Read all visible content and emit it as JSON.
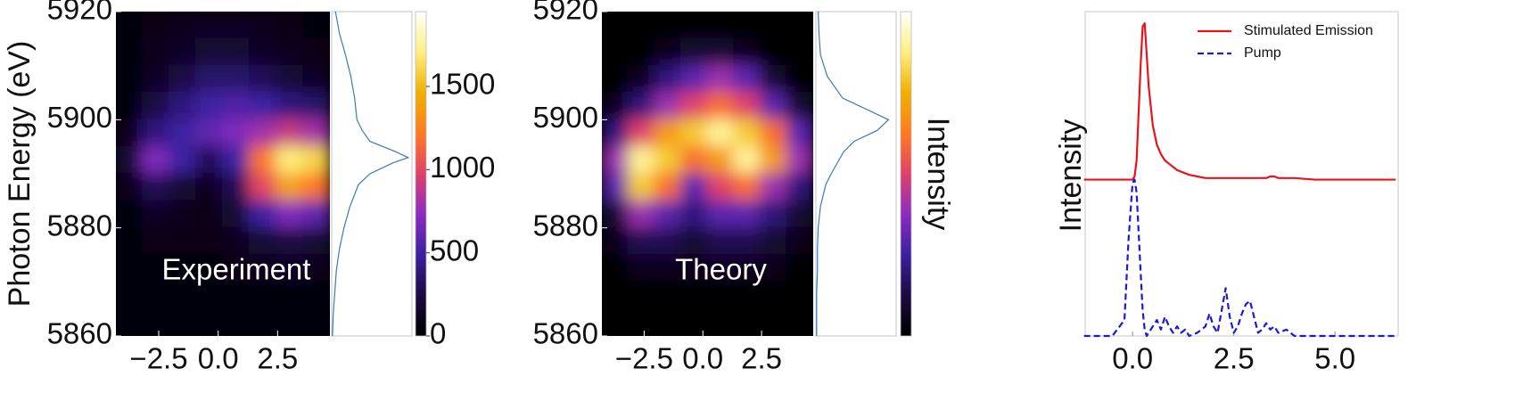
{
  "chart_data": [
    {
      "type": "heatmap",
      "ylabel": "Photon Energy (eV)",
      "annotation": "Experiment",
      "xlim": [
        -4.3,
        4.7
      ],
      "xticks": [
        {
          "value": -2.5,
          "label": "−2.5"
        },
        {
          "value": 0,
          "label": "0.0"
        },
        2.5
      ],
      "ylim": [
        5860,
        5920
      ],
      "yticks": [
        5860,
        5880,
        5900,
        5920
      ],
      "z": [
        [
          50,
          80,
          100,
          120,
          120,
          100,
          80,
          60
        ],
        [
          50,
          100,
          150,
          200,
          200,
          150,
          100,
          80
        ],
        [
          50,
          150,
          250,
          350,
          350,
          300,
          200,
          150
        ],
        [
          50,
          250,
          400,
          500,
          550,
          500,
          400,
          350
        ],
        [
          100,
          400,
          500,
          600,
          700,
          800,
          900,
          800
        ],
        [
          200,
          700,
          500,
          300,
          500,
          1200,
          1700,
          1600
        ],
        [
          100,
          300,
          200,
          100,
          300,
          1000,
          1400,
          1200
        ],
        [
          50,
          150,
          100,
          80,
          200,
          500,
          700,
          600
        ],
        [
          50,
          80,
          80,
          80,
          100,
          200,
          250,
          200
        ],
        [
          50,
          60,
          60,
          60,
          80,
          100,
          120,
          100
        ],
        [
          50,
          50,
          50,
          50,
          50,
          60,
          60,
          60
        ],
        [
          50,
          50,
          50,
          50,
          50,
          50,
          50,
          50
        ]
      ],
      "colormap": [
        "#000000",
        "#1a0a40",
        "#3a20a0",
        "#8a2cc0",
        "#e0406a",
        "#ff7a20",
        "#f0b000",
        "#fff080",
        "#ffffff"
      ],
      "clim": [
        0,
        1950
      ],
      "cticks": [
        0,
        500,
        1000,
        1500
      ],
      "spectrum": {
        "energy": [
          5860,
          5864,
          5868,
          5872,
          5876,
          5880,
          5884,
          5888,
          5890,
          5892,
          5893,
          5894,
          5896,
          5898,
          5900,
          5904,
          5908,
          5912,
          5916,
          5920
        ],
        "intensity": [
          0.01,
          0.02,
          0.04,
          0.06,
          0.1,
          0.16,
          0.24,
          0.35,
          0.5,
          0.8,
          1.0,
          0.85,
          0.5,
          0.4,
          0.33,
          0.3,
          0.25,
          0.18,
          0.1,
          0.05
        ],
        "xlim": [
          0,
          1.05
        ],
        "color": "#3a7ab8"
      }
    },
    {
      "type": "heatmap",
      "annotation": "Theory",
      "clabel": "Intensity",
      "xlim": [
        -4.3,
        4.7
      ],
      "xticks": [
        {
          "value": -2.5,
          "label": "−2.5"
        },
        {
          "value": 0,
          "label": "0.0"
        },
        2.5
      ],
      "ylim": [
        5860,
        5920
      ],
      "yticks": [
        5860,
        5880,
        5900,
        5920
      ],
      "z": [
        [
          0,
          0,
          0,
          0,
          0,
          0,
          0,
          0
        ],
        [
          0,
          0,
          0.05,
          0.1,
          0.1,
          0.05,
          0,
          0
        ],
        [
          0,
          0.05,
          0.2,
          0.3,
          0.4,
          0.3,
          0.1,
          0
        ],
        [
          0.05,
          0.2,
          0.4,
          0.5,
          0.6,
          0.5,
          0.3,
          0.1
        ],
        [
          0.2,
          0.5,
          0.7,
          0.8,
          0.9,
          0.8,
          0.6,
          0.3
        ],
        [
          0.4,
          0.9,
          0.8,
          0.6,
          0.7,
          0.9,
          0.7,
          0.4
        ],
        [
          0.3,
          0.8,
          0.6,
          0.3,
          0.5,
          0.6,
          0.4,
          0.2
        ],
        [
          0.1,
          0.4,
          0.3,
          0.2,
          0.3,
          0.3,
          0.2,
          0.1
        ],
        [
          0.05,
          0.15,
          0.15,
          0.1,
          0.15,
          0.15,
          0.1,
          0.05
        ],
        [
          0,
          0.05,
          0.05,
          0.05,
          0.05,
          0.05,
          0.05,
          0
        ],
        [
          0,
          0,
          0,
          0,
          0,
          0,
          0,
          0
        ],
        [
          0,
          0,
          0,
          0,
          0,
          0,
          0,
          0
        ]
      ],
      "colormap": [
        "#000000",
        "#1a0a40",
        "#3a20a0",
        "#8a2cc0",
        "#e0406a",
        "#ff7a20",
        "#f0b000",
        "#fff080",
        "#ffffff"
      ],
      "clim": [
        0,
        1
      ],
      "spectrum": {
        "energy": [
          5860,
          5864,
          5868,
          5872,
          5876,
          5880,
          5884,
          5888,
          5890,
          5892,
          5893,
          5894,
          5896,
          5898,
          5900,
          5904,
          5908,
          5912,
          5916,
          5920
        ],
        "intensity": [
          0.01,
          0.01,
          0.01,
          0.02,
          0.02,
          0.03,
          0.06,
          0.13,
          0.2,
          0.28,
          0.32,
          0.36,
          0.5,
          0.8,
          0.95,
          0.35,
          0.15,
          0.06,
          0.04,
          0.03
        ],
        "xlim": [
          0,
          1.05
        ],
        "color": "#3a7ab8"
      }
    },
    {
      "type": "line",
      "ylabel": "Intensity",
      "legend": "upper right",
      "x": [
        -1.2,
        -0.5,
        -0.2,
        -0.1,
        0,
        0.05,
        0.1,
        0.2,
        0.25,
        0.3,
        0.35,
        0.4,
        0.5,
        0.6,
        0.7,
        0.8,
        0.9,
        1.0,
        1.1,
        1.2,
        1.3,
        1.4,
        1.6,
        1.8,
        1.9,
        2.0,
        2.1,
        2.2,
        2.3,
        2.4,
        2.5,
        2.6,
        2.7,
        2.8,
        2.9,
        3.0,
        3.1,
        3.2,
        3.3,
        3.4,
        3.5,
        3.6,
        3.8,
        4.0,
        4.5,
        5.0,
        6.5
      ],
      "xlim": [
        -1.17,
        6.56
      ],
      "xticks": [
        {
          "value": 0,
          "label": "0.0"
        },
        2.5,
        {
          "value": 5,
          "label": "5.0"
        }
      ],
      "ylim": [
        0,
        1.0
      ],
      "series": [
        {
          "name": "Stimulated Emission",
          "color": "#e8141c",
          "dash": false,
          "values": [
            0.49,
            0.49,
            0.49,
            0.49,
            0.49,
            0.5,
            0.55,
            0.85,
            0.97,
            0.98,
            0.88,
            0.78,
            0.66,
            0.6,
            0.57,
            0.55,
            0.54,
            0.53,
            0.52,
            0.515,
            0.51,
            0.505,
            0.5,
            0.495,
            0.495,
            0.495,
            0.495,
            0.495,
            0.495,
            0.495,
            0.495,
            0.495,
            0.495,
            0.495,
            0.495,
            0.495,
            0.495,
            0.495,
            0.495,
            0.5,
            0.5,
            0.495,
            0.495,
            0.495,
            0.49,
            0.49,
            0.49
          ]
        },
        {
          "name": "Pump",
          "color": "#1a1ad8",
          "dash": true,
          "values": [
            0,
            0,
            0.05,
            0.3,
            0.48,
            0.49,
            0.45,
            0.2,
            0.08,
            0.02,
            0,
            0.01,
            0.03,
            0.05,
            0.02,
            0.06,
            0.03,
            0.01,
            0.03,
            0.01,
            0.02,
            0,
            0.01,
            0.03,
            0.07,
            0.03,
            0.01,
            0.08,
            0.15,
            0.06,
            0.01,
            0.03,
            0.07,
            0.1,
            0.11,
            0.06,
            0.01,
            0.02,
            0.04,
            0.02,
            0.03,
            0.01,
            0.02,
            0,
            0,
            0,
            0
          ]
        }
      ]
    }
  ]
}
